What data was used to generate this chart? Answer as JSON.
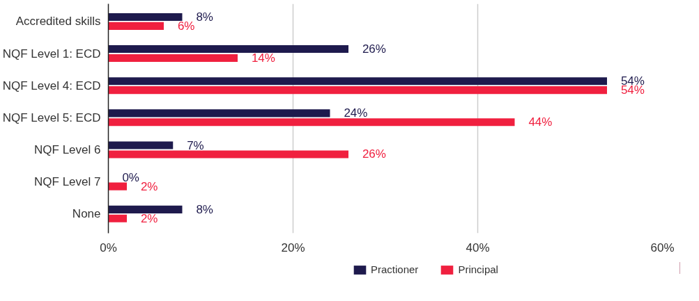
{
  "chart_data": {
    "type": "bar",
    "orientation": "horizontal",
    "categories": [
      "Accredited skills",
      "NQF Level 1: ECD",
      "NQF Level 4: ECD",
      "NQF Level 5: ECD",
      "NQF Level 6",
      "NQF Level 7",
      "None"
    ],
    "series": [
      {
        "name": "Practioner",
        "color": "#1e1a4d",
        "values": [
          8,
          26,
          54,
          24,
          7,
          0,
          8
        ],
        "value_labels": [
          "8%",
          "26%",
          "54%",
          "24%",
          "7%",
          "0%",
          "8%"
        ]
      },
      {
        "name": "Principal",
        "color": "#f0203f",
        "values": [
          6,
          14,
          54,
          44,
          26,
          2,
          2
        ],
        "value_labels": [
          "6%",
          "14%",
          "54%",
          "44%",
          "26%",
          "2%",
          "2%"
        ]
      }
    ],
    "xlim": [
      0,
      60
    ],
    "xticks": [
      {
        "value": 0,
        "label": "0%"
      },
      {
        "value": 20,
        "label": "20%"
      },
      {
        "value": 40,
        "label": "40%"
      },
      {
        "value": 60,
        "label": "60%"
      }
    ],
    "grid": "x",
    "legend": "bottom"
  }
}
